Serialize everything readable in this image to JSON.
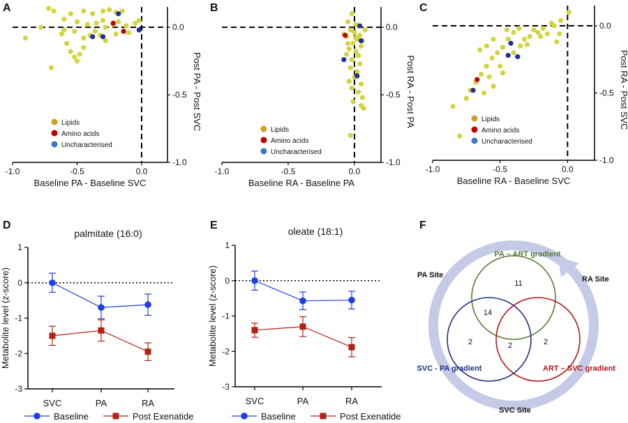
{
  "panels": {
    "A": "A",
    "B": "B",
    "C": "C",
    "D": "D",
    "E": "E",
    "F": "F"
  },
  "colors": {
    "lipid": "#d4d43f",
    "amino": "#c00000",
    "unchar": "#1f2f9e",
    "legend_lipid": "#c9a227",
    "legend_amino": "#c00000",
    "legend_unchar": "#3c78c8",
    "baseline": "#1f3fe0",
    "post": "#b22212",
    "venn_green": "#5a7a3a",
    "venn_blue": "#1f2f7a",
    "venn_red": "#b2151b",
    "ring": "#c5cbe6"
  },
  "scatter_legend": {
    "lipids": "Lipids",
    "amino": "Amino acids",
    "unchar": "Uncharacterised"
  },
  "chart_data": [
    {
      "id": "A",
      "type": "scatter",
      "xlabel": "Baseline PA - Baseline SVC",
      "ylabel": "Post PA - Post SVC",
      "xlim": [
        -1.0,
        0.2
      ],
      "ylim": [
        -1.0,
        0.15
      ],
      "xticks": [
        "-1.0",
        "-0.5",
        "0.0"
      ],
      "yticks": [
        "0.0",
        "-0.5",
        "-1.0"
      ],
      "series": [
        {
          "category": "lipids",
          "points": [
            [
              -0.72,
              0.14
            ],
            [
              -0.68,
              0.12
            ],
            [
              -0.55,
              0.1
            ],
            [
              -0.45,
              0.12
            ],
            [
              -0.38,
              0.1
            ],
            [
              -0.3,
              0.12
            ],
            [
              -0.25,
              0.13
            ],
            [
              -0.2,
              0.11
            ],
            [
              -0.15,
              0.12
            ],
            [
              -0.6,
              0.06
            ],
            [
              -0.5,
              0.04
            ],
            [
              -0.42,
              0.02
            ],
            [
              -0.35,
              0.03
            ],
            [
              -0.28,
              0.0
            ],
            [
              -0.22,
              0.02
            ],
            [
              -0.12,
              0.01
            ],
            [
              -0.05,
              0.03
            ],
            [
              -0.02,
              0.05
            ],
            [
              -0.78,
              0.0
            ],
            [
              -0.9,
              -0.08
            ],
            [
              -0.62,
              -0.05
            ],
            [
              -0.58,
              -0.12
            ],
            [
              -0.55,
              -0.18
            ],
            [
              -0.52,
              -0.22
            ],
            [
              -0.5,
              -0.25
            ],
            [
              -0.48,
              -0.2
            ],
            [
              -0.45,
              -0.08
            ],
            [
              -0.4,
              -0.06
            ],
            [
              -0.36,
              -0.03
            ],
            [
              -0.32,
              -0.06
            ],
            [
              -0.28,
              -0.1
            ],
            [
              -0.2,
              -0.05
            ],
            [
              -0.1,
              -0.04
            ],
            [
              -0.7,
              -0.3
            ],
            [
              -0.45,
              -0.15
            ],
            [
              -0.6,
              -0.02
            ],
            [
              -0.52,
              -0.03
            ],
            [
              -0.3,
              0.05
            ],
            [
              -0.18,
              0.04
            ]
          ]
        },
        {
          "category": "amino",
          "points": [
            [
              -0.22,
              0.03
            ],
            [
              -0.14,
              -0.03
            ]
          ]
        },
        {
          "category": "unchar",
          "points": [
            [
              -0.18,
              0.1
            ],
            [
              -0.38,
              -0.07
            ],
            [
              -0.3,
              -0.07
            ],
            [
              -0.02,
              -0.02
            ]
          ]
        }
      ]
    },
    {
      "id": "B",
      "type": "scatter",
      "xlabel": "Baseline RA - Baseline PA",
      "ylabel": "Post RA - Post PA",
      "xlim": [
        -1.0,
        0.2
      ],
      "ylim": [
        -1.0,
        0.15
      ],
      "xticks": [
        "-1.0",
        "-0.5",
        "0.0"
      ],
      "yticks": [
        "0.0",
        "-0.5",
        "-1.0"
      ],
      "series": [
        {
          "category": "lipids",
          "points": [
            [
              -0.02,
              0.1
            ],
            [
              -0.05,
              0.04
            ],
            [
              0.01,
              0.02
            ],
            [
              0.03,
              0.01
            ],
            [
              -0.03,
              -0.02
            ],
            [
              0.0,
              -0.04
            ],
            [
              0.04,
              -0.06
            ],
            [
              -0.06,
              -0.07
            ],
            [
              0.02,
              -0.09
            ],
            [
              -0.01,
              -0.12
            ],
            [
              0.05,
              -0.14
            ],
            [
              -0.04,
              -0.16
            ],
            [
              0.01,
              -0.18
            ],
            [
              0.03,
              -0.21
            ],
            [
              -0.02,
              -0.24
            ],
            [
              0.04,
              -0.27
            ],
            [
              -0.03,
              -0.3
            ],
            [
              0.02,
              -0.33
            ],
            [
              0.0,
              -0.37
            ],
            [
              -0.04,
              -0.4
            ],
            [
              0.05,
              -0.42
            ],
            [
              -0.02,
              -0.45
            ],
            [
              0.03,
              -0.48
            ],
            [
              0.06,
              -0.52
            ],
            [
              -0.01,
              -0.55
            ],
            [
              0.05,
              -0.58
            ],
            [
              0.07,
              -0.6
            ],
            [
              -0.05,
              -0.12
            ],
            [
              -0.08,
              -0.05
            ],
            [
              0.08,
              -0.02
            ],
            [
              0.06,
              -0.1
            ],
            [
              -0.06,
              -0.2
            ],
            [
              0.01,
              -0.08
            ],
            [
              -0.03,
              -0.8
            ]
          ]
        },
        {
          "category": "amino",
          "points": [
            [
              -0.07,
              -0.06
            ]
          ]
        },
        {
          "category": "unchar",
          "points": [
            [
              0.04,
              0.01
            ],
            [
              0.05,
              -0.1
            ],
            [
              -0.08,
              -0.24
            ],
            [
              0.02,
              -0.36
            ]
          ]
        }
      ]
    },
    {
      "id": "C",
      "type": "scatter",
      "xlabel": "Baseline RA - Baseline SVC",
      "ylabel": "Post RA - Post SVC",
      "xlim": [
        -1.0,
        0.2
      ],
      "ylim": [
        -1.0,
        0.15
      ],
      "xticks": [
        "-1.0",
        "-0.5",
        "0.0"
      ],
      "yticks": [
        "0.0",
        "-0.5",
        "-1.0"
      ],
      "series": [
        {
          "category": "lipids",
          "points": [
            [
              0.01,
              0.1
            ],
            [
              -0.05,
              0.04
            ],
            [
              -0.12,
              0.02
            ],
            [
              -0.18,
              -0.02
            ],
            [
              -0.22,
              -0.05
            ],
            [
              -0.28,
              -0.08
            ],
            [
              -0.32,
              -0.1
            ],
            [
              -0.36,
              -0.02
            ],
            [
              -0.4,
              -0.05
            ],
            [
              -0.44,
              -0.1
            ],
            [
              -0.48,
              -0.16
            ],
            [
              -0.52,
              -0.2
            ],
            [
              -0.56,
              -0.24
            ],
            [
              -0.6,
              -0.3
            ],
            [
              -0.64,
              -0.36
            ],
            [
              -0.68,
              -0.42
            ],
            [
              -0.72,
              -0.48
            ],
            [
              -0.75,
              -0.54
            ],
            [
              -0.85,
              -0.6
            ],
            [
              -0.8,
              -0.82
            ],
            [
              -0.58,
              -0.38
            ],
            [
              -0.5,
              -0.3
            ],
            [
              -0.4,
              -0.2
            ],
            [
              -0.3,
              -0.14
            ],
            [
              -0.2,
              -0.08
            ],
            [
              -0.1,
              0.0
            ],
            [
              -0.06,
              -0.06
            ],
            [
              -0.65,
              -0.18
            ],
            [
              -0.6,
              -0.15
            ],
            [
              -0.55,
              -0.1
            ],
            [
              -0.45,
              -0.03
            ],
            [
              -0.35,
              -0.15
            ],
            [
              -0.25,
              -0.03
            ],
            [
              -0.15,
              -0.06
            ],
            [
              -0.08,
              -0.12
            ],
            [
              -0.62,
              -0.5
            ],
            [
              -0.55,
              -0.45
            ],
            [
              -0.48,
              -0.35
            ]
          ]
        },
        {
          "category": "amino",
          "points": [
            [
              -0.67,
              -0.4
            ]
          ]
        },
        {
          "category": "unchar",
          "points": [
            [
              -0.42,
              -0.13
            ],
            [
              -0.37,
              -0.23
            ],
            [
              -0.44,
              -0.22
            ],
            [
              -0.7,
              -0.48
            ]
          ]
        }
      ]
    },
    {
      "id": "D",
      "type": "line",
      "title": "palmitate (16:0)",
      "ylabel": "Metabolite level (z-score)",
      "categories": [
        "SVC",
        "PA",
        "RA"
      ],
      "ylim": [
        -3,
        1
      ],
      "yticks": [
        "1",
        "0",
        "-1",
        "-2",
        "-3"
      ],
      "series": [
        {
          "name": "Baseline",
          "values": [
            0.0,
            -0.7,
            -0.62
          ],
          "err": [
            0.27,
            0.32,
            0.3
          ]
        },
        {
          "name": "Post Exenatide",
          "values": [
            -1.5,
            -1.35,
            -1.95
          ],
          "err": [
            0.27,
            0.3,
            0.25
          ]
        }
      ]
    },
    {
      "id": "E",
      "type": "line",
      "title": "oleate (18:1)",
      "ylabel": "Metabolite level (z-score)",
      "categories": [
        "SVC",
        "PA",
        "RA"
      ],
      "ylim": [
        -3,
        1
      ],
      "yticks": [
        "1",
        "0",
        "-1",
        "-2",
        "-3"
      ],
      "series": [
        {
          "name": "Baseline",
          "values": [
            0.0,
            -0.57,
            -0.55
          ],
          "err": [
            0.27,
            0.25,
            0.25
          ]
        },
        {
          "name": "Post Exenatide",
          "values": [
            -1.4,
            -1.3,
            -1.88
          ],
          "err": [
            0.2,
            0.28,
            0.27
          ]
        }
      ]
    }
  ],
  "venn": {
    "sites": {
      "pa": "PA Site",
      "ra": "RA Site",
      "svc": "SVC Site"
    },
    "sets": {
      "green": "PA – ART gradient",
      "blue": "SVC - PA gradient",
      "red": "ART – SVC gradient"
    },
    "counts": {
      "green_only": "11",
      "green_blue": "14",
      "blue_only": "2",
      "blue_red": "2",
      "red_only": "2"
    }
  }
}
